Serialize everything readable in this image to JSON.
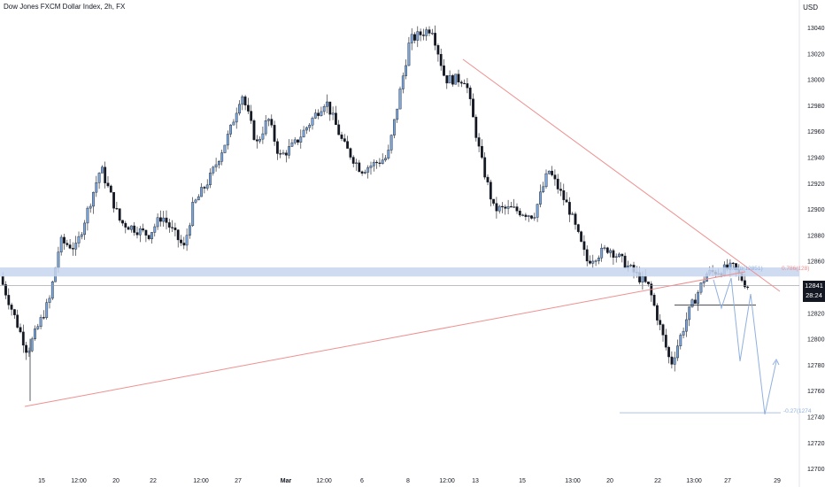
{
  "header": {
    "title": "Dow Jones FXCM Dollar Index, 2h, FX",
    "currency": "USD"
  },
  "last_price": {
    "value": "12841",
    "countdown": "28:24"
  },
  "colors": {
    "up": "#7aa6db",
    "down": "#131722",
    "trendline": "#ef8f8f",
    "zone": "#c5d5ef",
    "projection": "#8fb0e0",
    "fib": "#f28c8c"
  },
  "fib_labels": {
    "upper": "0.786(128)",
    "mid": "0.618(12851)",
    "lower": "-0.27(1274"
  },
  "chart_data": {
    "type": "candlestick",
    "title": "Dow Jones FXCM Dollar Index, 2h, FX",
    "ylabel": "USD",
    "ylim": [
      12700,
      13060
    ],
    "y_ticks": [
      13040,
      13020,
      13000,
      12980,
      12960,
      12940,
      12920,
      12900,
      12880,
      12860,
      12820,
      12800,
      12780,
      12760,
      12740,
      12720,
      12700
    ],
    "x_ticks": [
      "15",
      "12:00",
      "20",
      "22",
      "12:00",
      "27",
      "Mar",
      "12:00",
      "6",
      "8",
      "12:00",
      "13",
      "15",
      "13:00",
      "20",
      "22",
      "13:00",
      "27",
      "29"
    ],
    "series_path": [
      [
        12848,
        12800
      ],
      [
        12790,
        12770
      ],
      [
        12830,
        12860
      ],
      [
        12875,
        12860
      ],
      [
        12870,
        12910
      ],
      [
        12932,
        12900
      ],
      [
        12890,
        12860
      ],
      [
        12880,
        12900
      ],
      [
        12895,
        12860
      ],
      [
        12870,
        12880
      ],
      [
        12902,
        12900
      ],
      [
        12925,
        12915
      ],
      [
        12960,
        12985
      ],
      [
        12990,
        12960
      ],
      [
        12950,
        12940
      ],
      [
        12970,
        12960
      ],
      [
        12940,
        12920
      ],
      [
        12950,
        12930
      ],
      [
        12984,
        12960
      ],
      [
        12950,
        12940
      ],
      [
        12930,
        12925
      ],
      [
        12940,
        12975
      ],
      [
        13030,
        13052
      ],
      [
        13040,
        13020
      ],
      [
        13000,
        13010
      ],
      [
        13000,
        12960
      ],
      [
        12940,
        12920
      ],
      [
        12900,
        12880
      ],
      [
        12900,
        12880
      ],
      [
        12895,
        12960
      ],
      [
        12930,
        12900
      ],
      [
        12900,
        12870
      ],
      [
        12860,
        12840
      ],
      [
        12870,
        12855
      ],
      [
        12860,
        12835
      ],
      [
        12840,
        12800
      ],
      [
        12780,
        12800
      ],
      [
        12820,
        12825
      ],
      [
        12850,
        12860
      ],
      [
        12855,
        12841
      ]
    ],
    "resistance_zone": [
      12848,
      12855
    ],
    "current_price": 12841,
    "breakdown_level": 12826,
    "projection_target": 12743,
    "trendlines": [
      {
        "name": "descending",
        "from": [
          "8",
          13013
        ],
        "to": [
          "27",
          12840
        ]
      },
      {
        "name": "ascending",
        "from": [
          "15",
          12750
        ],
        "to": [
          "27",
          12853
        ]
      }
    ]
  }
}
